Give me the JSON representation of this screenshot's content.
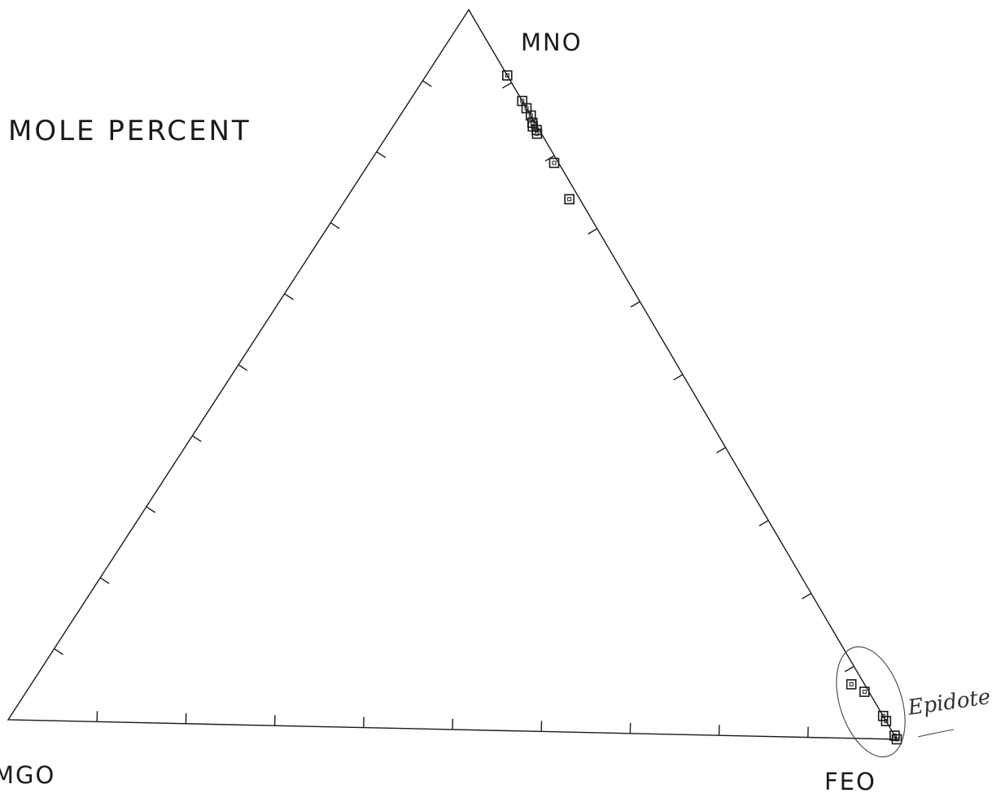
{
  "chart_data": {
    "type": "scatter",
    "subtype": "ternary",
    "title": "MOLE PERCENT",
    "apex_labels": {
      "top": "MNO",
      "left": "MGO",
      "right": "FEO"
    },
    "ticks_per_side": 9,
    "marker": "open-square",
    "annotation": {
      "text": "Epidote",
      "encircles": "points near FEO apex"
    },
    "points": [
      {
        "mno": 91,
        "mgo": 0,
        "feo": 9
      },
      {
        "mno": 87.5,
        "mgo": 0,
        "feo": 12.5
      },
      {
        "mno": 86.5,
        "mgo": 0,
        "feo": 13.5
      },
      {
        "mno": 85.5,
        "mgo": 0,
        "feo": 14.5
      },
      {
        "mno": 84.5,
        "mgo": 0.3,
        "feo": 15.2
      },
      {
        "mno": 84,
        "mgo": 0.5,
        "feo": 15.5
      },
      {
        "mno": 83.5,
        "mgo": 0.3,
        "feo": 16.2
      },
      {
        "mno": 83,
        "mgo": 0.5,
        "feo": 16.5
      },
      {
        "mno": 79,
        "mgo": 0.5,
        "feo": 20.5
      },
      {
        "mno": 74,
        "mgo": 1.2,
        "feo": 24.8
      },
      {
        "mno": 7.5,
        "mgo": 1.5,
        "feo": 91
      },
      {
        "mno": 6.5,
        "mgo": 0.5,
        "feo": 93
      },
      {
        "mno": 3.2,
        "mgo": 0,
        "feo": 96.8
      },
      {
        "mno": 2.5,
        "mgo": 0,
        "feo": 97.5
      },
      {
        "mno": 0.5,
        "mgo": 0,
        "feo": 99.5
      },
      {
        "mno": 0,
        "mgo": 0,
        "feo": 100
      }
    ]
  },
  "colors": {
    "ink": "#1a1a1a",
    "pencil": "#333333",
    "background": "#ffffff"
  }
}
